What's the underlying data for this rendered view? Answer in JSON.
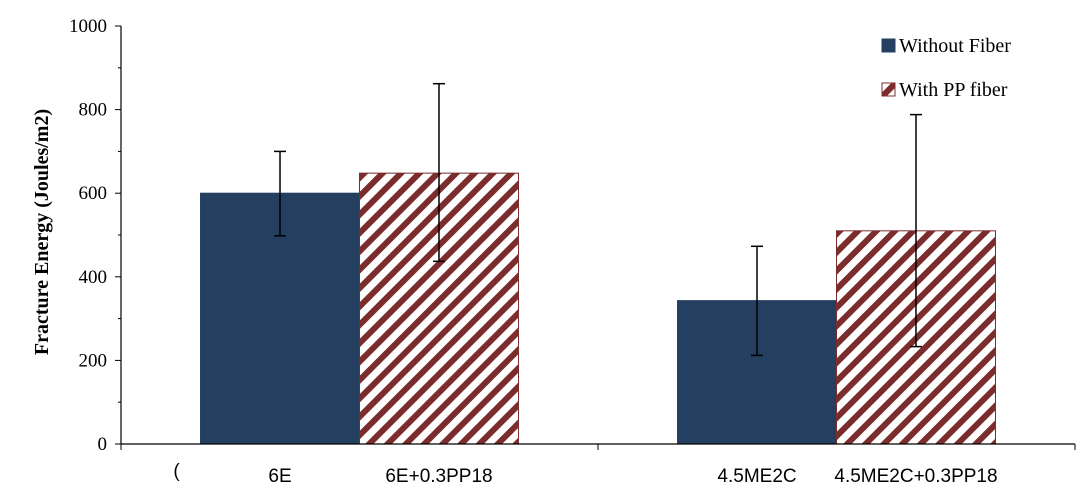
{
  "chart_data": {
    "type": "bar",
    "title": "",
    "xlabel": "",
    "ylabel": "Fracture Energy (Joules/m2)",
    "ylim": [
      0,
      1000
    ],
    "yticks": [
      0,
      200,
      400,
      600,
      800,
      1000
    ],
    "grid": false,
    "legend_position": "top-right",
    "groups": [
      {
        "bars": [
          {
            "category": "6E",
            "series": "Without Fiber",
            "value": 600,
            "err_low": 498,
            "err_high": 700
          },
          {
            "category": "6E+0.3PP18",
            "series": "With PP fiber",
            "value": 648,
            "err_low": 437,
            "err_high": 862
          }
        ]
      },
      {
        "bars": [
          {
            "category": "4.5ME2C",
            "series": "Without Fiber",
            "value": 343,
            "err_low": 212,
            "err_high": 473
          },
          {
            "category": "4.5ME2C+0.3PP18",
            "series": "With PP fiber",
            "value": 510,
            "err_low": 233,
            "err_high": 788
          }
        ]
      }
    ],
    "series": [
      {
        "name": "Without Fiber",
        "color": "#243f60",
        "pattern": "solid"
      },
      {
        "name": "With PP fiber",
        "color": "#7b2c2c",
        "pattern": "diagonal-stripes"
      }
    ],
    "stray_label": "("
  }
}
